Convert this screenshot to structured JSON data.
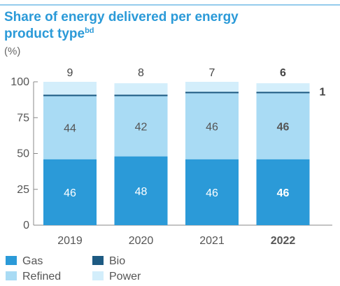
{
  "chart_data": {
    "type": "bar",
    "stacked": true,
    "title_line1": "Share of energy delivered per energy",
    "title_line2": "product type",
    "title_superscript": "bd",
    "unit": "(%)",
    "categories": [
      "2019",
      "2020",
      "2021",
      "2022"
    ],
    "highlight_category": "2022",
    "ylim": [
      0,
      100
    ],
    "yticks": [
      0,
      25,
      50,
      75,
      100
    ],
    "series": [
      {
        "name": "Gas",
        "color": "#2b9ad8",
        "values": [
          46,
          48,
          46,
          46
        ],
        "labels": [
          "46",
          "48",
          "46",
          "46"
        ]
      },
      {
        "name": "Refined",
        "color": "#a9dbf4",
        "values": [
          44,
          42,
          46,
          46
        ],
        "labels": [
          "44",
          "42",
          "46",
          "46"
        ]
      },
      {
        "name": "Bio",
        "color": "#1d5a82",
        "values": [
          1,
          1,
          1,
          1
        ],
        "labels": [
          "",
          "",
          "",
          "1"
        ]
      },
      {
        "name": "Power",
        "color": "#d3eefb",
        "values": [
          9,
          8,
          7,
          6
        ],
        "labels": [
          "9",
          "8",
          "7",
          "6"
        ]
      }
    ],
    "legend_position": "bottom-left",
    "title_color": "#2b9ad8",
    "text_color": "#555555"
  }
}
